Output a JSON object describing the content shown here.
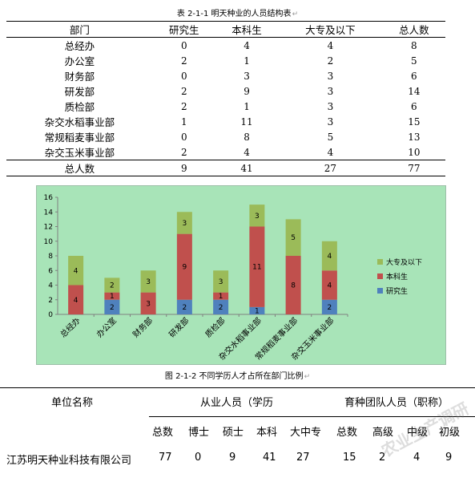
{
  "table1": {
    "caption": "表 2-1-1 明天种业的人员结构表",
    "headers": [
      "部门",
      "研究生",
      "本科生",
      "大专及以下",
      "总人数"
    ],
    "rows": [
      {
        "dept": "总经办",
        "vals": [
          "0",
          "4",
          "4",
          "8"
        ]
      },
      {
        "dept": "办公室",
        "vals": [
          "2",
          "1",
          "2",
          "5"
        ]
      },
      {
        "dept": "财务部",
        "vals": [
          "0",
          "3",
          "3",
          "6"
        ]
      },
      {
        "dept": "研发部",
        "vals": [
          "2",
          "9",
          "3",
          "14"
        ]
      },
      {
        "dept": "质检部",
        "vals": [
          "2",
          "1",
          "3",
          "6"
        ]
      },
      {
        "dept": "杂交水稻事业部",
        "vals": [
          "1",
          "11",
          "3",
          "15"
        ]
      },
      {
        "dept": "常规稻麦事业部",
        "vals": [
          "0",
          "8",
          "5",
          "13"
        ]
      },
      {
        "dept": "杂交玉米事业部",
        "vals": [
          "2",
          "4",
          "4",
          "10"
        ]
      }
    ],
    "total": {
      "label": "总人数",
      "vals": [
        "9",
        "41",
        "27",
        "77"
      ]
    }
  },
  "chart_data": {
    "type": "bar",
    "stacked": true,
    "categories": [
      "总经办",
      "办公室",
      "财务部",
      "研发部",
      "质检部",
      "杂交水稻事业部",
      "常规稻麦事业部",
      "杂交玉米事业部"
    ],
    "series": [
      {
        "name": "研究生",
        "color": "#4f81bd",
        "values": [
          0,
          2,
          0,
          2,
          2,
          1,
          0,
          2
        ]
      },
      {
        "name": "本科生",
        "color": "#c0504d",
        "values": [
          4,
          1,
          3,
          9,
          1,
          11,
          8,
          4
        ]
      },
      {
        "name": "大专及以下",
        "color": "#9bbb59",
        "values": [
          4,
          2,
          3,
          3,
          3,
          3,
          5,
          4
        ]
      }
    ],
    "ylim": [
      0,
      16
    ],
    "yticks": [
      0,
      2,
      4,
      6,
      8,
      10,
      12,
      14,
      16
    ],
    "legend_position": "right",
    "background": "#a8e4b8"
  },
  "figure_caption": "图 2-1-2 不同学历人才占所在部门比例",
  "table2": {
    "unit_header": "单位名称",
    "group1_header": "从业人员（学历",
    "group2_header": "育种团队人员（职称）",
    "sub_headers": [
      "总数",
      "博士",
      "硕士",
      "本科",
      "大中专",
      "总数",
      "高级",
      "中级",
      "初级"
    ],
    "company": "江苏明天种业科技有限公司",
    "values": [
      "77",
      "0",
      "9",
      "41",
      "27",
      "15",
      "2",
      "4",
      "9"
    ]
  },
  "watermark": "农业生产调研"
}
